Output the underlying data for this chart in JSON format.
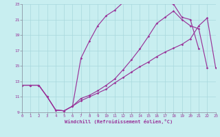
{
  "xlabel": "Windchill (Refroidissement éolien,°C)",
  "bg_color": "#c8eef0",
  "line_color": "#993399",
  "grid_color": "#a8d8dc",
  "axis_color": "#888899",
  "xmin": 0,
  "xmax": 23,
  "ymin": 9,
  "ymax": 23,
  "yticks": [
    9,
    11,
    13,
    15,
    17,
    19,
    21,
    23
  ],
  "xticks": [
    0,
    1,
    2,
    3,
    4,
    5,
    6,
    7,
    8,
    9,
    10,
    11,
    12,
    13,
    14,
    15,
    16,
    17,
    18,
    19,
    20,
    21,
    22,
    23
  ],
  "curve1_x": [
    0,
    1,
    2,
    3,
    4,
    5,
    6,
    7,
    8,
    9,
    10,
    11,
    12,
    13,
    14,
    15,
    16,
    17,
    18,
    19,
    20,
    21
  ],
  "curve1_y": [
    12.5,
    12.5,
    12.5,
    11.0,
    9.3,
    9.2,
    9.8,
    16.0,
    18.2,
    20.2,
    21.5,
    22.2,
    23.2,
    23.5,
    23.6,
    23.8,
    23.5,
    23.2,
    23.0,
    21.3,
    21.0,
    17.2
  ],
  "curve2_x": [
    0,
    1,
    2,
    3,
    4,
    5,
    6,
    7,
    8,
    9,
    10,
    11,
    12,
    13,
    14,
    15,
    16,
    17,
    18,
    19,
    20,
    21,
    22,
    23
  ],
  "curve2_y": [
    12.5,
    12.5,
    12.5,
    11.0,
    9.3,
    9.2,
    9.8,
    10.5,
    11.0,
    11.5,
    12.0,
    12.8,
    13.5,
    14.2,
    14.9,
    15.5,
    16.2,
    16.8,
    17.3,
    17.8,
    18.5,
    20.2,
    21.2,
    14.8
  ],
  "curve3_x": [
    0,
    1,
    2,
    3,
    4,
    5,
    6,
    7,
    8,
    9,
    10,
    11,
    12,
    13,
    14,
    15,
    16,
    17,
    18,
    19,
    20,
    21,
    22
  ],
  "curve3_y": [
    12.5,
    12.5,
    12.5,
    11.0,
    9.3,
    9.2,
    9.8,
    10.8,
    11.2,
    11.8,
    12.5,
    13.3,
    14.5,
    15.8,
    17.2,
    18.8,
    20.5,
    21.3,
    22.1,
    21.0,
    20.2,
    19.8,
    14.8
  ]
}
